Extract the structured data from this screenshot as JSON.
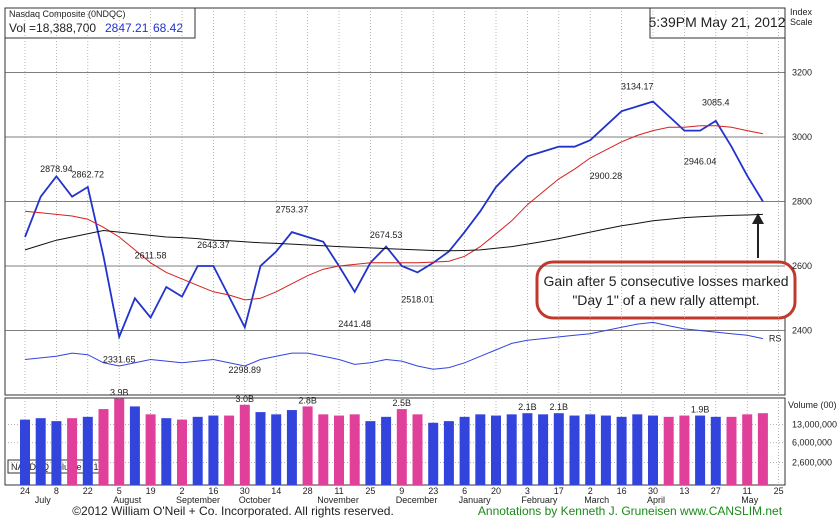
{
  "chart_data": {
    "type": "line",
    "title": "Nasdaq Composite (0NDQC)",
    "header": {
      "volume": "Vol =18,388,700",
      "close": 2847.21,
      "change": 68.42
    },
    "timestamp": "5:39PM May 21, 2012",
    "ylabel": [
      "Index",
      "Scale"
    ],
    "categories": [
      "24",
      null,
      "8",
      null,
      "22",
      null,
      "5",
      null,
      "19",
      null,
      "2",
      null,
      "16",
      null,
      "30",
      null,
      "14",
      null,
      "28",
      null,
      "11",
      null,
      "25",
      null,
      "9",
      null,
      "23",
      null,
      "6",
      null,
      "20",
      null,
      "3",
      null,
      "17",
      null,
      "2",
      null,
      "16",
      null,
      "30",
      null,
      "13",
      null,
      "27",
      null,
      "11",
      null,
      "25"
    ],
    "months": [
      null,
      "July",
      null,
      null,
      null,
      null,
      "August",
      null,
      null,
      null,
      "September",
      null,
      null,
      null,
      "October",
      null,
      null,
      null,
      null,
      "November",
      null,
      null,
      null,
      null,
      "December",
      null,
      null,
      null,
      "January",
      null,
      null,
      null,
      "February",
      null,
      null,
      null,
      "March",
      null,
      null,
      null,
      "April",
      null,
      null,
      null,
      null,
      null,
      "May",
      null,
      null
    ],
    "ylim": [
      2200,
      3400
    ],
    "yticks": [
      2400,
      2600,
      2800,
      3000,
      3200
    ],
    "grid": true,
    "series": [
      {
        "color": "#2233cc",
        "values": [
          2690,
          2815,
          2878,
          2815,
          2845,
          2630,
          2380,
          2500,
          2440,
          2535,
          2505,
          2600,
          2600,
          2505,
          2410,
          2600,
          2645,
          2705,
          2690,
          2675,
          2600,
          2520,
          2610,
          2660,
          2600,
          2580,
          2610,
          2645,
          2705,
          2770,
          2845,
          2895,
          2940,
          2955,
          2970,
          2970,
          2990,
          3035,
          3080,
          3095,
          3110,
          3065,
          3020,
          3020,
          3050,
          2970,
          2880,
          2800,
          null
        ]
      },
      {
        "color": "#d62020",
        "values": [
          2770,
          2765,
          2760,
          2755,
          2745,
          2720,
          2690,
          2650,
          2610,
          2580,
          2560,
          2540,
          2520,
          2510,
          2495,
          2500,
          2520,
          2545,
          2570,
          2590,
          2600,
          2605,
          2610,
          2610,
          2610,
          2610,
          2612,
          2615,
          2630,
          2660,
          2700,
          2740,
          2790,
          2830,
          2870,
          2900,
          2935,
          2960,
          2985,
          3005,
          3020,
          3030,
          3030,
          3035,
          3035,
          3030,
          3020,
          3010,
          null
        ]
      },
      {
        "color": "#111111",
        "values": [
          2650,
          2665,
          2680,
          2690,
          2700,
          2710,
          2705,
          2700,
          2695,
          2690,
          2688,
          2685,
          2680,
          2678,
          2675,
          2672,
          2670,
          2668,
          2665,
          2663,
          2660,
          2658,
          2656,
          2654,
          2652,
          2650,
          2648,
          2647,
          2648,
          2650,
          2655,
          2660,
          2668,
          2676,
          2685,
          2695,
          2705,
          2715,
          2725,
          2732,
          2740,
          2745,
          2750,
          2753,
          2755,
          2757,
          2758,
          2760,
          null
        ]
      },
      {
        "name": "RS",
        "color": "#3344dd",
        "values": [
          2310,
          2315,
          2320,
          2330,
          2325,
          2300,
          2290,
          2300,
          2310,
          2305,
          2300,
          2305,
          2310,
          2300,
          2290,
          2310,
          2320,
          2330,
          2330,
          2320,
          2310,
          2295,
          2300,
          2310,
          2305,
          2290,
          2280,
          2285,
          2300,
          2320,
          2340,
          2360,
          2370,
          2375,
          2380,
          2385,
          2390,
          2400,
          2410,
          2420,
          2425,
          2415,
          2405,
          2400,
          2395,
          2390,
          2385,
          2375,
          null
        ]
      }
    ],
    "pivots": [
      null,
      null,
      2878.94,
      null,
      2862.72,
      null,
      2331.65,
      null,
      2611.58,
      null,
      null,
      null,
      2643.37,
      null,
      2298.89,
      null,
      null,
      2753.37,
      null,
      null,
      null,
      2441.48,
      null,
      2674.53,
      null,
      2518.01,
      null,
      null,
      null,
      null,
      null,
      null,
      null,
      null,
      null,
      null,
      null,
      2900.28,
      null,
      3134.17,
      null,
      null,
      null,
      2946.04,
      3085.4,
      null,
      null,
      null,
      null
    ],
    "volume": {
      "label": "Volume (00)",
      "legend": "NASDAQ Volume in 100",
      "colors": [
        "#3344dd",
        "#e0409a"
      ],
      "log": true,
      "ylim": [
        1000000,
        40000000
      ],
      "yticks": [
        {
          "value": 13000000,
          "label": "13,000,000"
        },
        {
          "value": 6000000,
          "label": "6,000,000"
        },
        {
          "value": 2600000,
          "label": "2,600,000"
        }
      ],
      "values": [
        16000000,
        17000000,
        15000000,
        17000000,
        18000000,
        25000000,
        39000000,
        28000000,
        20000000,
        17000000,
        16000000,
        18000000,
        19000000,
        19000000,
        30000000,
        22000000,
        20000000,
        24000000,
        28000000,
        20000000,
        19000000,
        20000000,
        15000000,
        18000000,
        25000000,
        20000000,
        14000000,
        15000000,
        18000000,
        20000000,
        19000000,
        20000000,
        21000000,
        20000000,
        21000000,
        19000000,
        20000000,
        19000000,
        18000000,
        20000000,
        19000000,
        18000000,
        19000000,
        19000000,
        18000000,
        18000000,
        20000000,
        21000000,
        null
      ],
      "value_labels": [
        null,
        null,
        null,
        null,
        null,
        null,
        "3.9B",
        null,
        null,
        null,
        null,
        null,
        null,
        null,
        "3.0B",
        null,
        null,
        null,
        "2.8B",
        null,
        null,
        null,
        null,
        null,
        "2.5B",
        null,
        null,
        null,
        null,
        null,
        null,
        null,
        "2.1B",
        null,
        "2.1B",
        null,
        null,
        null,
        null,
        null,
        null,
        null,
        null,
        "1.9B",
        null,
        null,
        null,
        null,
        null
      ]
    },
    "annotation": [
      "Gain after 5 consecutive losses marked",
      "\"Day 1\" of a new rally attempt."
    ],
    "footer": {
      "copyright": "©2012 William O'Neil + Co. Incorporated. All rights reserved.",
      "credit": "Annotations by Kenneth J. Gruneisen www.CANSLIM.net"
    }
  }
}
